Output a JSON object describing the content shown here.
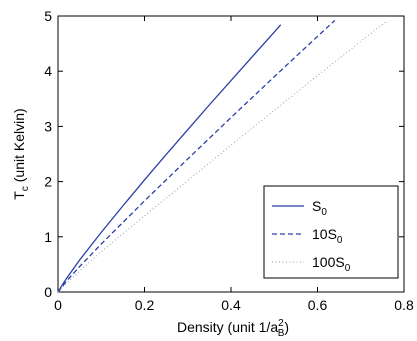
{
  "chart_data": {
    "type": "line",
    "xlabel": "Density (unit 1/a",
    "xlabel_sup": "2",
    "xlabel_sub": "B",
    "xlabel_close": ")",
    "ylabel_T": "T",
    "ylabel_sub": "c",
    "ylabel_rest": " (unit Kelvin)",
    "xlim": [
      0,
      0.8
    ],
    "ylim": [
      0,
      5
    ],
    "xticks": [
      0,
      0.2,
      0.4,
      0.6,
      0.8
    ],
    "xtick_labels": [
      "0",
      "0.2",
      "0.4",
      "0.6",
      "0.8"
    ],
    "yticks": [
      0,
      1,
      2,
      3,
      4,
      5
    ],
    "ytick_labels": [
      "0",
      "1",
      "2",
      "3",
      "4",
      "5"
    ],
    "grid": false,
    "legend_position": "bottom-right",
    "series": [
      {
        "name": "S",
        "name_sub": "0",
        "style": "solid",
        "color": "#2b3fa8",
        "x": [
          0,
          0.01,
          0.02,
          0.05,
          0.1,
          0.15,
          0.2,
          0.25,
          0.3,
          0.35,
          0.4,
          0.45,
          0.5,
          0.515
        ],
        "y": [
          0,
          0.13,
          0.25,
          0.58,
          1.08,
          1.56,
          2.03,
          2.49,
          2.94,
          3.39,
          3.83,
          4.27,
          4.71,
          4.84
        ]
      },
      {
        "name": "10S",
        "name_sub": "0",
        "style": "dashed",
        "color": "#2b3fa8",
        "x": [
          0,
          0.01,
          0.02,
          0.05,
          0.1,
          0.2,
          0.3,
          0.4,
          0.5,
          0.6,
          0.64
        ],
        "y": [
          0,
          0.1,
          0.2,
          0.46,
          0.87,
          1.65,
          2.41,
          3.16,
          3.9,
          4.63,
          4.92
        ]
      },
      {
        "name": "100S",
        "name_sub": "0",
        "style": "dotted",
        "color": "#9aa0aa",
        "x": [
          0,
          0.01,
          0.02,
          0.05,
          0.1,
          0.2,
          0.3,
          0.4,
          0.5,
          0.6,
          0.7,
          0.76
        ],
        "y": [
          0,
          0.08,
          0.16,
          0.38,
          0.73,
          1.38,
          2.02,
          2.66,
          3.29,
          3.92,
          4.54,
          4.91
        ]
      }
    ]
  }
}
